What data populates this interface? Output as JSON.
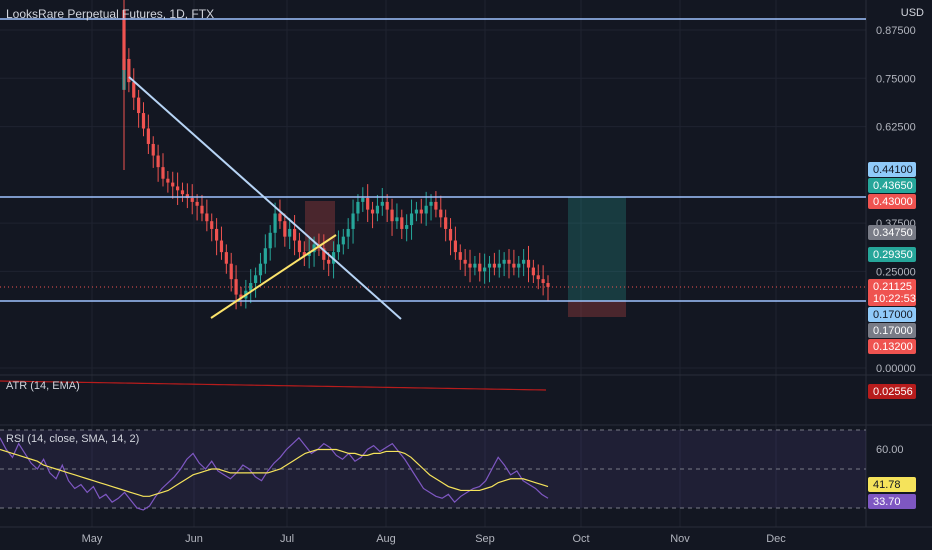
{
  "header": {
    "title": "LooksRare Perpetual Futures, 1D, FTX",
    "currency": "USD"
  },
  "colors": {
    "background": "#131722",
    "grid": "#1f2330",
    "up": "#26a69a",
    "down": "#ef5350",
    "trendline": "#b7d4f5",
    "support": "#fbe36b",
    "hline": "#9fc4ff",
    "atr": "#b71c1c",
    "rsi": "#7e57c2",
    "rsi_ma": "#f5e35b",
    "rsi_band": "rgba(126,87,194,0.12)"
  },
  "chart_data": {
    "type": "candlestick",
    "title": "LooksRare Perpetual Futures, 1D, FTX",
    "x_ticks": [
      "May",
      "Jun",
      "Jul",
      "Aug",
      "Sep",
      "Oct",
      "Nov",
      "Dec"
    ],
    "y_ticks": [
      "0.87500",
      "0.75000",
      "0.62500",
      "0.37500",
      "0.25000",
      "0.00000"
    ],
    "price_range": [
      0.0,
      0.9
    ],
    "price_labels": [
      {
        "text": "0.44100",
        "color": "#90caf9",
        "text_color": "#131722"
      },
      {
        "text": "0.43650",
        "color": "#26a69a",
        "text_color": "#ffffff"
      },
      {
        "text": "0.43000",
        "color": "#ef5350",
        "text_color": "#ffffff"
      },
      {
        "text": "0.34750",
        "color": "#787b86",
        "text_color": "#ffffff"
      },
      {
        "text": "0.29350",
        "color": "#26a69a",
        "text_color": "#ffffff"
      },
      {
        "text": "0.21125",
        "color": "#ef5350",
        "text_color": "#ffffff"
      },
      {
        "text": "10:22:53",
        "color": "#ef5350",
        "text_color": "#ffffff"
      },
      {
        "text": "0.17000",
        "color": "#90caf9",
        "text_color": "#131722"
      },
      {
        "text": "0.17000",
        "color": "#787b86",
        "text_color": "#ffffff"
      },
      {
        "text": "0.13200",
        "color": "#ef5350",
        "text_color": "#ffffff"
      }
    ],
    "close_series": [
      0.8,
      0.74,
      0.7,
      0.66,
      0.62,
      0.58,
      0.55,
      0.52,
      0.49,
      0.48,
      0.47,
      0.46,
      0.45,
      0.44,
      0.43,
      0.42,
      0.4,
      0.38,
      0.36,
      0.33,
      0.3,
      0.27,
      0.23,
      0.19,
      0.18,
      0.2,
      0.22,
      0.24,
      0.27,
      0.31,
      0.35,
      0.4,
      0.38,
      0.34,
      0.36,
      0.33,
      0.3,
      0.29,
      0.3,
      0.32,
      0.31,
      0.28,
      0.27,
      0.3,
      0.32,
      0.34,
      0.36,
      0.4,
      0.43,
      0.44,
      0.41,
      0.4,
      0.42,
      0.43,
      0.41,
      0.38,
      0.39,
      0.36,
      0.37,
      0.4,
      0.41,
      0.4,
      0.42,
      0.43,
      0.41,
      0.39,
      0.36,
      0.33,
      0.3,
      0.28,
      0.27,
      0.26,
      0.27,
      0.25,
      0.26,
      0.27,
      0.26,
      0.27,
      0.28,
      0.27,
      0.26,
      0.27,
      0.28,
      0.26,
      0.24,
      0.23,
      0.22,
      0.21
    ],
    "atr": {
      "label": "ATR (14, EMA)",
      "value": "0.02556"
    },
    "rsi": {
      "label": "RSI (14, close, SMA, 14, 2)",
      "tick": "60.00",
      "value": "41.78",
      "ma_value": "33.70",
      "rsi_series": [
        66,
        60,
        56,
        63,
        58,
        53,
        50,
        55,
        48,
        45,
        52,
        44,
        40,
        42,
        38,
        41,
        35,
        37,
        33,
        35,
        38,
        34,
        30,
        29,
        31,
        36,
        40,
        43,
        46,
        50,
        55,
        58,
        53,
        50,
        54,
        49,
        47,
        45,
        48,
        52,
        50,
        46,
        44,
        49,
        53,
        56,
        60,
        63,
        66,
        62,
        58,
        60,
        63,
        61,
        57,
        55,
        58,
        54,
        56,
        60,
        62,
        59,
        61,
        63,
        59,
        55,
        50,
        45,
        40,
        38,
        36,
        35,
        37,
        33,
        36,
        38,
        40,
        41,
        44,
        50,
        56,
        52,
        47,
        49,
        44,
        42,
        40,
        37,
        35
      ],
      "ma_series": [
        60,
        59,
        58,
        57,
        56,
        55,
        54,
        52,
        51,
        50,
        49,
        48,
        47,
        46,
        45,
        44,
        43,
        42,
        41,
        40,
        39,
        38,
        37,
        36,
        36,
        37,
        38,
        39,
        41,
        43,
        45,
        47,
        48,
        49,
        50,
        50,
        49,
        48,
        48,
        48,
        48,
        48,
        48,
        48,
        49,
        50,
        52,
        54,
        56,
        58,
        59,
        60,
        60,
        60,
        60,
        59,
        58,
        58,
        57,
        57,
        58,
        58,
        59,
        59,
        59,
        58,
        56,
        53,
        50,
        47,
        45,
        43,
        41,
        40,
        39,
        39,
        39,
        39,
        40,
        41,
        43,
        44,
        45,
        45,
        45,
        44,
        43,
        42,
        41
      ]
    }
  }
}
